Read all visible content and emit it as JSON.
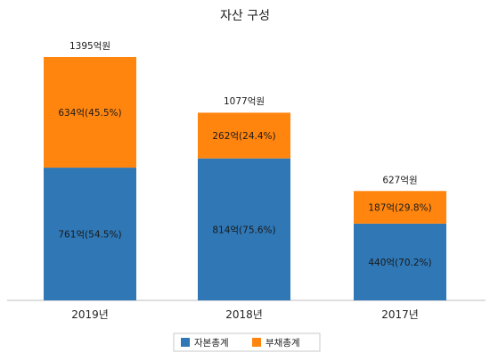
{
  "chart_data": {
    "type": "bar",
    "stacked": true,
    "title": "자산 구성",
    "categories": [
      "2019년",
      "2018년",
      "2017년"
    ],
    "series": [
      {
        "name": "자본총계",
        "color": "#2f77b5",
        "values": [
          761,
          814,
          440
        ],
        "labels": [
          "761억(54.5%)",
          "814억(75.6%)",
          "440억(70.2%)"
        ]
      },
      {
        "name": "부채총계",
        "color": "#ff850f",
        "values": [
          634,
          262,
          187
        ],
        "labels": [
          "634억(45.5%)",
          "262억(24.4%)",
          "187억(29.8%)"
        ]
      }
    ],
    "totals": [
      1395,
      1077,
      627
    ],
    "total_labels": [
      "1395억원",
      "1077억원",
      "627억원"
    ],
    "ylim": [
      0,
      1500
    ],
    "grid": false,
    "legend_position": "bottom"
  }
}
